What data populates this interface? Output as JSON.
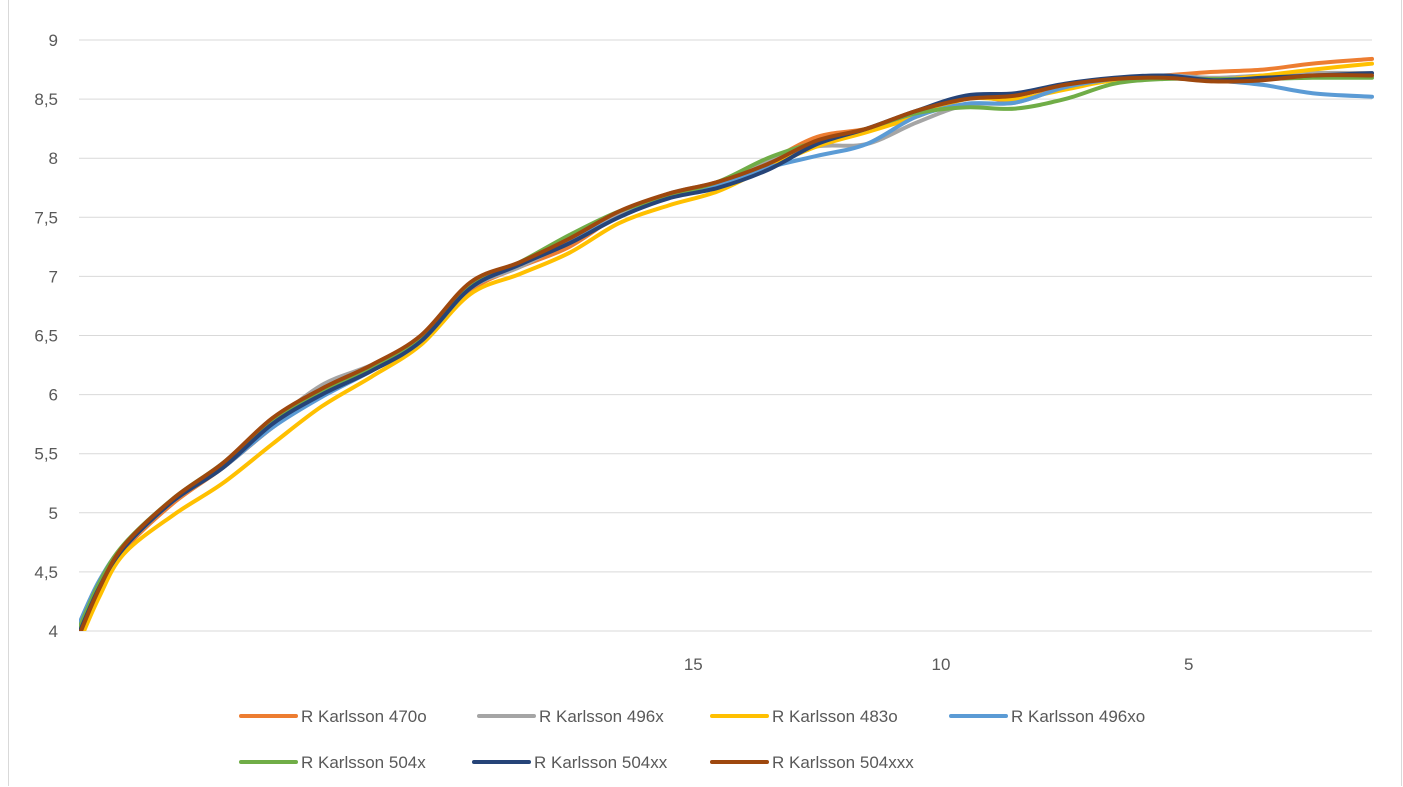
{
  "chart_data": {
    "type": "line",
    "title": "",
    "xlabel": "",
    "ylabel": "",
    "ylim": [
      4,
      9
    ],
    "xlim": [
      27.4,
      1.3
    ],
    "x_reversed": true,
    "grid": "horizontal",
    "legend_position": "bottom",
    "y_ticks": [
      "4",
      "4,5",
      "5",
      "5,5",
      "6",
      "6,5",
      "7",
      "7,5",
      "8",
      "8,5",
      "9"
    ],
    "x_ticks": [
      {
        "value": 15,
        "label": "15"
      },
      {
        "value": 10,
        "label": "10"
      },
      {
        "value": 5,
        "label": "5"
      }
    ],
    "series": [
      {
        "name": "R Karlsson 470o",
        "color": "#ED7D31",
        "points": [
          [
            27.4,
            3.93
          ],
          [
            27.0,
            4.32
          ],
          [
            26.5,
            4.68
          ],
          [
            25.5,
            5.08
          ],
          [
            24.5,
            5.38
          ],
          [
            23.5,
            5.72
          ],
          [
            22.5,
            6.02
          ],
          [
            21.5,
            6.2
          ],
          [
            20.5,
            6.45
          ],
          [
            19.5,
            6.88
          ],
          [
            18.5,
            7.08
          ],
          [
            17.5,
            7.25
          ],
          [
            16.5,
            7.52
          ],
          [
            15.5,
            7.7
          ],
          [
            14.5,
            7.78
          ],
          [
            13.5,
            7.97
          ],
          [
            12.5,
            8.18
          ],
          [
            11.5,
            8.25
          ],
          [
            10.5,
            8.38
          ],
          [
            9.5,
            8.52
          ],
          [
            8.5,
            8.49
          ],
          [
            7.5,
            8.6
          ],
          [
            6.5,
            8.67
          ],
          [
            5.5,
            8.7
          ],
          [
            4.5,
            8.73
          ],
          [
            3.5,
            8.75
          ],
          [
            2.5,
            8.8
          ],
          [
            1.3,
            8.84
          ]
        ]
      },
      {
        "name": "R Karlsson 496x",
        "color": "#A5A5A5",
        "points": [
          [
            27.4,
            4.03
          ],
          [
            27.0,
            4.38
          ],
          [
            26.5,
            4.7
          ],
          [
            25.5,
            5.1
          ],
          [
            24.5,
            5.4
          ],
          [
            23.5,
            5.76
          ],
          [
            22.5,
            6.08
          ],
          [
            21.5,
            6.25
          ],
          [
            20.5,
            6.46
          ],
          [
            19.5,
            6.9
          ],
          [
            18.5,
            7.08
          ],
          [
            17.5,
            7.3
          ],
          [
            16.5,
            7.52
          ],
          [
            15.5,
            7.7
          ],
          [
            14.5,
            7.8
          ],
          [
            13.5,
            7.98
          ],
          [
            12.5,
            8.1
          ],
          [
            11.5,
            8.12
          ],
          [
            10.5,
            8.3
          ],
          [
            9.5,
            8.45
          ],
          [
            8.5,
            8.47
          ],
          [
            7.5,
            8.6
          ],
          [
            6.5,
            8.66
          ],
          [
            5.5,
            8.7
          ],
          [
            4.5,
            8.68
          ],
          [
            3.5,
            8.7
          ],
          [
            2.5,
            8.72
          ],
          [
            1.3,
            8.72
          ]
        ]
      },
      {
        "name": "R Karlsson 483o",
        "color": "#FFC000",
        "points": [
          [
            27.4,
            3.9
          ],
          [
            27.0,
            4.28
          ],
          [
            26.5,
            4.65
          ],
          [
            25.5,
            4.98
          ],
          [
            24.5,
            5.25
          ],
          [
            23.5,
            5.58
          ],
          [
            22.5,
            5.9
          ],
          [
            21.5,
            6.15
          ],
          [
            20.5,
            6.42
          ],
          [
            19.5,
            6.85
          ],
          [
            18.5,
            7.02
          ],
          [
            17.5,
            7.2
          ],
          [
            16.5,
            7.45
          ],
          [
            15.5,
            7.6
          ],
          [
            14.5,
            7.72
          ],
          [
            13.5,
            7.92
          ],
          [
            12.5,
            8.1
          ],
          [
            11.5,
            8.22
          ],
          [
            10.5,
            8.35
          ],
          [
            9.5,
            8.5
          ],
          [
            8.5,
            8.5
          ],
          [
            7.5,
            8.58
          ],
          [
            6.5,
            8.66
          ],
          [
            5.5,
            8.68
          ],
          [
            4.5,
            8.66
          ],
          [
            3.5,
            8.7
          ],
          [
            2.5,
            8.75
          ],
          [
            1.3,
            8.8
          ]
        ]
      },
      {
        "name": "R Karlsson 496xo",
        "color": "#5B9BD5",
        "points": [
          [
            27.4,
            4.06
          ],
          [
            27.0,
            4.42
          ],
          [
            26.5,
            4.72
          ],
          [
            25.5,
            5.1
          ],
          [
            24.5,
            5.38
          ],
          [
            23.5,
            5.72
          ],
          [
            22.5,
            5.98
          ],
          [
            21.5,
            6.2
          ],
          [
            20.5,
            6.45
          ],
          [
            19.5,
            6.9
          ],
          [
            18.5,
            7.1
          ],
          [
            17.5,
            7.3
          ],
          [
            16.5,
            7.5
          ],
          [
            15.5,
            7.68
          ],
          [
            14.5,
            7.78
          ],
          [
            13.5,
            7.92
          ],
          [
            12.5,
            8.02
          ],
          [
            11.5,
            8.12
          ],
          [
            10.5,
            8.35
          ],
          [
            9.5,
            8.46
          ],
          [
            8.5,
            8.47
          ],
          [
            7.5,
            8.6
          ],
          [
            6.5,
            8.67
          ],
          [
            5.5,
            8.7
          ],
          [
            4.5,
            8.66
          ],
          [
            3.5,
            8.62
          ],
          [
            2.5,
            8.55
          ],
          [
            1.3,
            8.52
          ]
        ]
      },
      {
        "name": "R Karlsson 504x",
        "color": "#70AD47",
        "points": [
          [
            27.4,
            4.02
          ],
          [
            27.0,
            4.4
          ],
          [
            26.5,
            4.73
          ],
          [
            25.5,
            5.12
          ],
          [
            24.5,
            5.42
          ],
          [
            23.5,
            5.78
          ],
          [
            22.5,
            6.02
          ],
          [
            21.5,
            6.22
          ],
          [
            20.5,
            6.47
          ],
          [
            19.5,
            6.92
          ],
          [
            18.5,
            7.12
          ],
          [
            17.5,
            7.35
          ],
          [
            16.5,
            7.55
          ],
          [
            15.5,
            7.68
          ],
          [
            14.5,
            7.8
          ],
          [
            13.5,
            8.0
          ],
          [
            12.5,
            8.14
          ],
          [
            11.5,
            8.25
          ],
          [
            10.5,
            8.38
          ],
          [
            9.5,
            8.43
          ],
          [
            8.5,
            8.42
          ],
          [
            7.5,
            8.5
          ],
          [
            6.5,
            8.63
          ],
          [
            5.5,
            8.67
          ],
          [
            4.5,
            8.67
          ],
          [
            3.5,
            8.67
          ],
          [
            2.5,
            8.68
          ],
          [
            1.3,
            8.68
          ]
        ]
      },
      {
        "name": "R Karlsson 504xx",
        "color": "#264478",
        "points": [
          [
            27.4,
            3.98
          ],
          [
            27.0,
            4.36
          ],
          [
            26.5,
            4.7
          ],
          [
            25.5,
            5.1
          ],
          [
            24.5,
            5.38
          ],
          [
            23.5,
            5.75
          ],
          [
            22.5,
            6.0
          ],
          [
            21.5,
            6.2
          ],
          [
            20.5,
            6.45
          ],
          [
            19.5,
            6.9
          ],
          [
            18.5,
            7.1
          ],
          [
            17.5,
            7.28
          ],
          [
            16.5,
            7.5
          ],
          [
            15.5,
            7.66
          ],
          [
            14.5,
            7.75
          ],
          [
            13.5,
            7.9
          ],
          [
            12.5,
            8.12
          ],
          [
            11.5,
            8.25
          ],
          [
            10.5,
            8.4
          ],
          [
            9.5,
            8.53
          ],
          [
            8.5,
            8.55
          ],
          [
            7.5,
            8.63
          ],
          [
            6.5,
            8.68
          ],
          [
            5.5,
            8.7
          ],
          [
            4.5,
            8.66
          ],
          [
            3.5,
            8.68
          ],
          [
            2.5,
            8.7
          ],
          [
            1.3,
            8.72
          ]
        ]
      },
      {
        "name": "R Karlsson 504xxx",
        "color": "#9E480E",
        "points": [
          [
            27.4,
            3.96
          ],
          [
            27.0,
            4.35
          ],
          [
            26.5,
            4.72
          ],
          [
            25.5,
            5.12
          ],
          [
            24.5,
            5.42
          ],
          [
            23.5,
            5.8
          ],
          [
            22.5,
            6.05
          ],
          [
            21.5,
            6.25
          ],
          [
            20.5,
            6.5
          ],
          [
            19.5,
            6.95
          ],
          [
            18.5,
            7.12
          ],
          [
            17.5,
            7.32
          ],
          [
            16.5,
            7.55
          ],
          [
            15.5,
            7.7
          ],
          [
            14.5,
            7.8
          ],
          [
            13.5,
            7.95
          ],
          [
            12.5,
            8.15
          ],
          [
            11.5,
            8.25
          ],
          [
            10.5,
            8.4
          ],
          [
            9.5,
            8.5
          ],
          [
            8.5,
            8.53
          ],
          [
            7.5,
            8.62
          ],
          [
            6.5,
            8.67
          ],
          [
            5.5,
            8.68
          ],
          [
            4.5,
            8.65
          ],
          [
            3.5,
            8.66
          ],
          [
            2.5,
            8.7
          ],
          [
            1.3,
            8.7
          ]
        ]
      }
    ]
  }
}
